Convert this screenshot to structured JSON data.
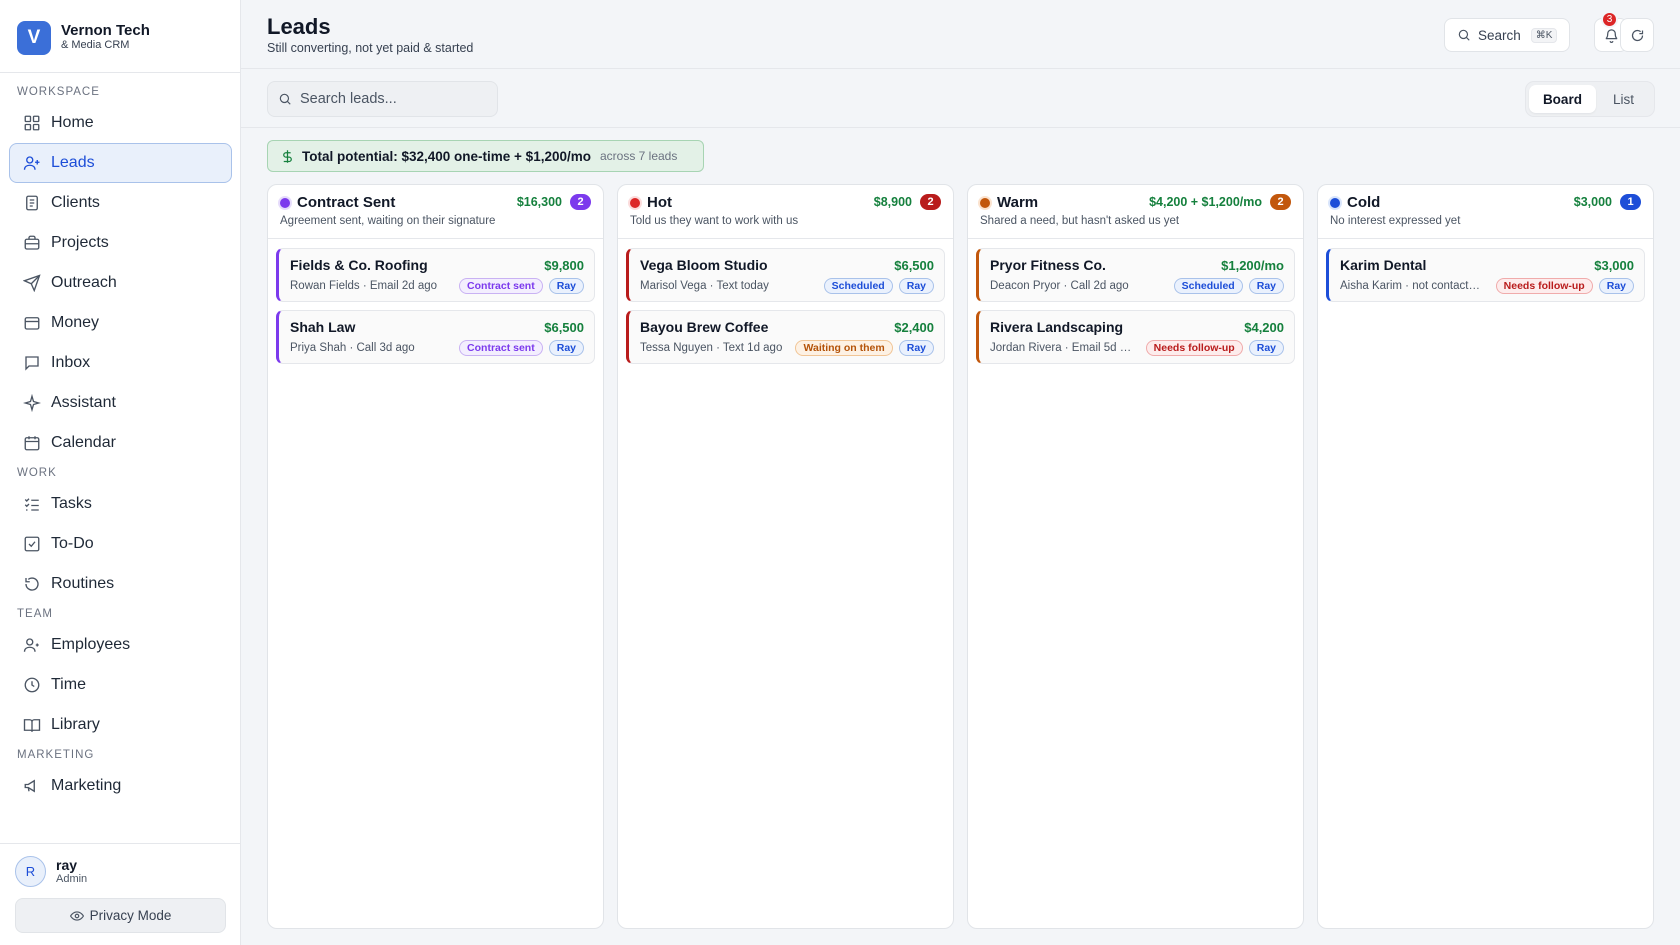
{
  "brand": {
    "logo_letter": "V",
    "name": "Vernon Tech",
    "sub": "& Media CRM"
  },
  "sidebar": {
    "sections": [
      {
        "label": "WORKSPACE"
      },
      {
        "label": "WORK"
      },
      {
        "label": "TEAM"
      },
      {
        "label": "MARKETING"
      }
    ],
    "items": [
      {
        "label": "Home",
        "icon": "grid-icon"
      },
      {
        "label": "Leads",
        "icon": "user-plus-icon",
        "active": true
      },
      {
        "label": "Clients",
        "icon": "clipboard-icon"
      },
      {
        "label": "Projects",
        "icon": "briefcase-icon"
      },
      {
        "label": "Outreach",
        "icon": "send-icon"
      },
      {
        "label": "Money",
        "icon": "wallet-icon"
      },
      {
        "label": "Inbox",
        "icon": "message-icon"
      },
      {
        "label": "Assistant",
        "icon": "sparkle-icon"
      },
      {
        "label": "Calendar",
        "icon": "calendar-icon"
      },
      {
        "label": "Tasks",
        "icon": "list-check-icon"
      },
      {
        "label": "To-Do",
        "icon": "checkbox-icon"
      },
      {
        "label": "Routines",
        "icon": "refresh-icon"
      },
      {
        "label": "Employees",
        "icon": "users-icon"
      },
      {
        "label": "Time",
        "icon": "clock-icon"
      },
      {
        "label": "Library",
        "icon": "book-icon"
      },
      {
        "label": "Marketing",
        "icon": "megaphone-icon"
      }
    ]
  },
  "user": {
    "initial": "R",
    "name": "ray",
    "role": "Admin"
  },
  "privacy_label": "Privacy Mode",
  "header": {
    "title": "Leads",
    "subtitle": "Still converting, not yet paid & started",
    "search_label": "Search",
    "search_shortcut": "⌘K",
    "notification_count": "3"
  },
  "toolbar": {
    "search_placeholder": "Search leads...",
    "views": [
      "Board",
      "List"
    ],
    "active_view": "Board"
  },
  "summary": {
    "total": "Total potential: $32,400 one-time + $1,200/mo",
    "count": "across 7 leads"
  },
  "colors": {
    "accent": "#1d4ed8",
    "money": "#15803d",
    "contract": "#7c3aed",
    "hot": "#b91c1c",
    "warm": "#c2570c",
    "cold": "#1d4ed8"
  },
  "columns": [
    {
      "name": "Contract Sent",
      "desc": "Agreement sent, waiting on their signature",
      "amount": "$16,300",
      "count": "2",
      "color": "#7c3aed",
      "cards": [
        {
          "name": "Fields & Co. Roofing",
          "amount": "$9,800",
          "meta": "Rowan Fields · Email 2d ago",
          "status": "Contract sent",
          "status_style": "purple",
          "owner": "Ray"
        },
        {
          "name": "Shah Law",
          "amount": "$6,500",
          "meta": "Priya Shah · Call 3d ago",
          "status": "Contract sent",
          "status_style": "purple",
          "owner": "Ray"
        }
      ]
    },
    {
      "name": "Hot",
      "desc": "Told us they want to work with us",
      "amount": "$8,900",
      "count": "2",
      "color": "#b91c1c",
      "cards": [
        {
          "name": "Vega Bloom Studio",
          "amount": "$6,500",
          "meta": "Marisol Vega · Text today",
          "status": "Scheduled",
          "status_style": "blue",
          "owner": "Ray"
        },
        {
          "name": "Bayou Brew Coffee",
          "amount": "$2,400",
          "meta": "Tessa Nguyen · Text 1d ago",
          "status": "Waiting on them",
          "status_style": "orange",
          "owner": "Ray"
        }
      ]
    },
    {
      "name": "Warm",
      "desc": "Shared a need, but hasn't asked us yet",
      "amount": "$4,200 + $1,200/mo",
      "count": "2",
      "color": "#c2570c",
      "cards": [
        {
          "name": "Pryor Fitness Co.",
          "amount": "$1,200/mo",
          "meta": "Deacon Pryor · Call 2d ago",
          "status": "Scheduled",
          "status_style": "blue",
          "owner": "Ray"
        },
        {
          "name": "Rivera Landscaping",
          "amount": "$4,200",
          "meta": "Jordan Rivera · Email 5d …",
          "status": "Needs follow-up",
          "status_style": "red",
          "owner": "Ray"
        }
      ]
    },
    {
      "name": "Cold",
      "desc": "No interest expressed yet",
      "amount": "$3,000",
      "count": "1",
      "color": "#1d4ed8",
      "cards": [
        {
          "name": "Karim Dental",
          "amount": "$3,000",
          "meta": "Aisha Karim · not contact…",
          "status": "Needs follow-up",
          "status_style": "red",
          "owner": "Ray"
        }
      ]
    }
  ]
}
